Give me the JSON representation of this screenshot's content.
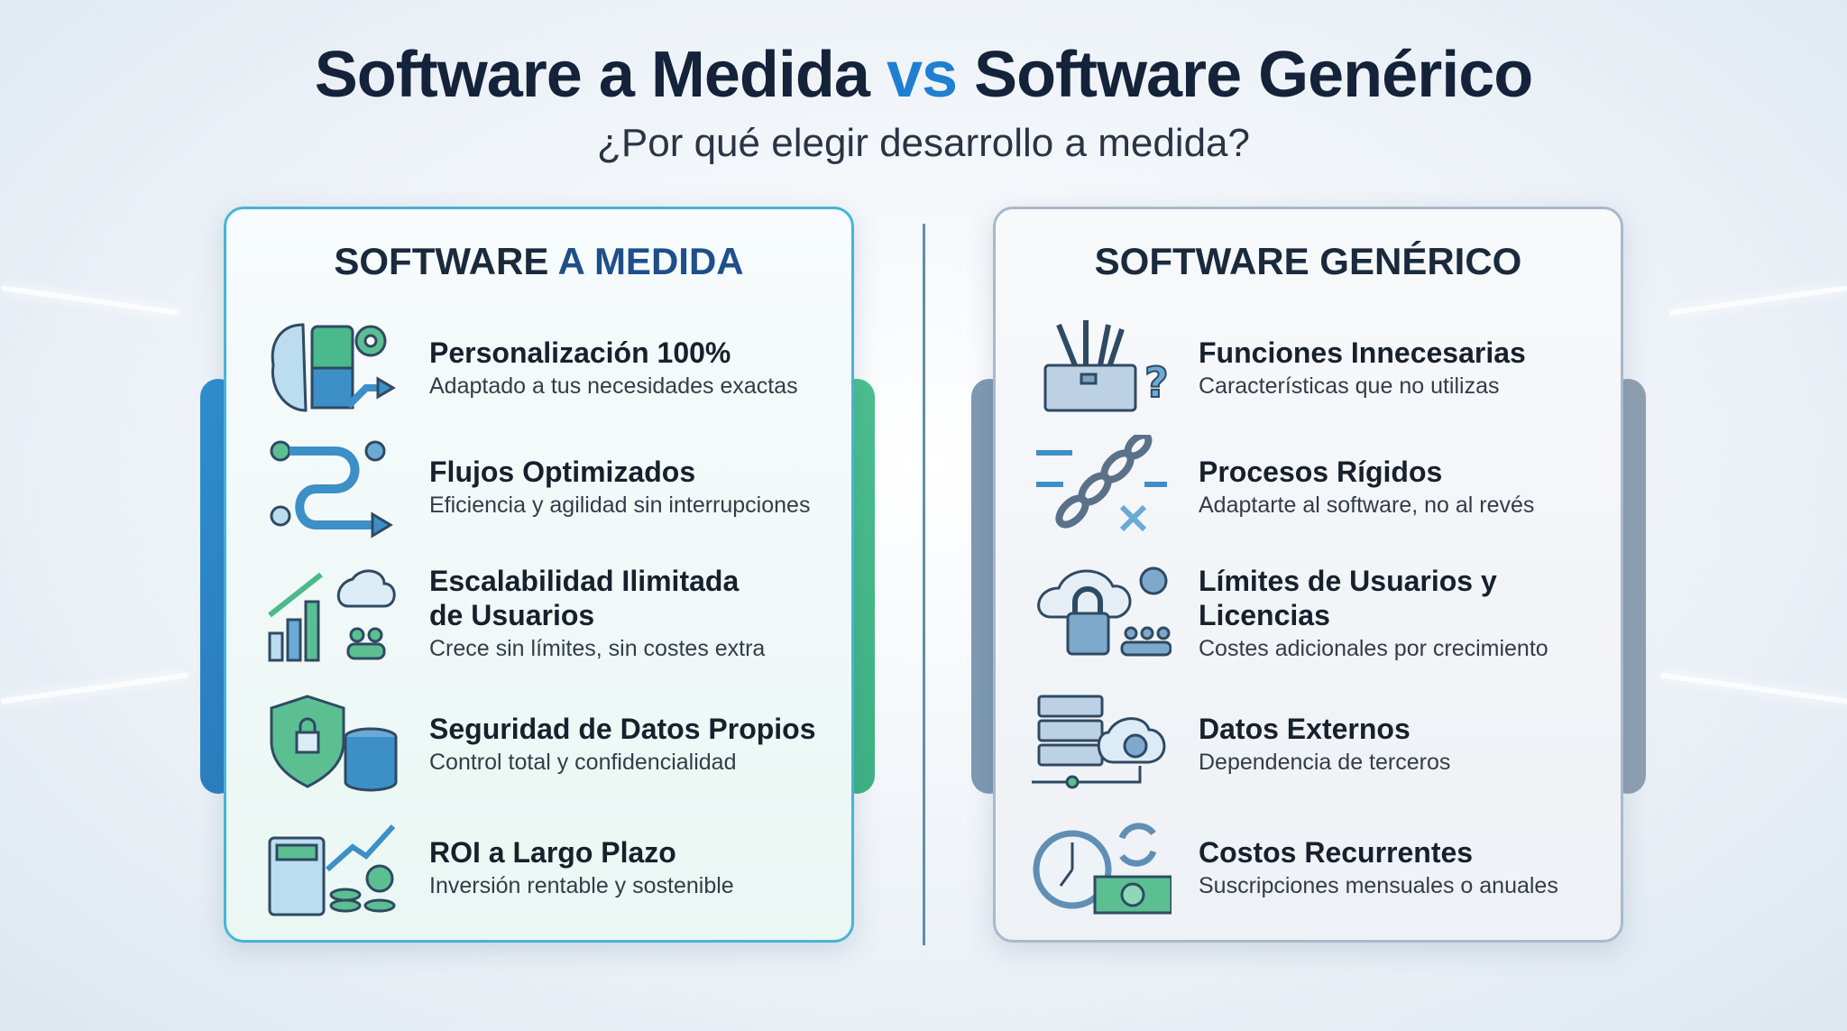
{
  "header": {
    "title_part1": "Software a Medida",
    "title_vs": "vs",
    "title_part2": "Software Genérico",
    "subtitle": "¿Por qué elegir desarrollo a medida?"
  },
  "colors": {
    "accent_blue": "#1f7fd0",
    "accent_green": "#4cc08f",
    "grey": "#9aabbc"
  },
  "left": {
    "heading_part1": "SOFTWARE",
    "heading_part2": "A MEDIDA",
    "items": [
      {
        "icon": "brain-puzzle-gear-icon",
        "title": "Personalización 100%",
        "desc": "Adaptado a tus necesidades exactas"
      },
      {
        "icon": "flow-arrows-icon",
        "title": "Flujos Optimizados",
        "desc": "Eficiencia y agilidad sin interrupciones"
      },
      {
        "icon": "growth-chart-cloud-users-icon",
        "title": "Escalabilidad Ilimitada de Usuarios",
        "desc": "Crece sin límites, sin costes extra"
      },
      {
        "icon": "shield-lock-database-icon",
        "title": "Seguridad de Datos Propios",
        "desc": "Control total y confidencialidad"
      },
      {
        "icon": "calculator-coins-icon",
        "title": "ROI a Largo Plazo",
        "desc": "Inversión rentable y sostenible"
      }
    ]
  },
  "right": {
    "heading": "SOFTWARE GENÉRICO",
    "items": [
      {
        "icon": "toolbox-question-icon",
        "title": "Funciones Innecesarias",
        "desc": "Características que no utilizas"
      },
      {
        "icon": "broken-chain-icon",
        "title": "Procesos Rígidos",
        "desc": "Adaptarte al software, no al revés"
      },
      {
        "icon": "cloud-lock-users-icon",
        "title": "Límites de Usuarios y Licencias",
        "desc": "Costes adicionales por crecimiento"
      },
      {
        "icon": "server-cloud-icon",
        "title": "Datos Externos",
        "desc": "Dependencia de terceros"
      },
      {
        "icon": "clock-money-icon",
        "title": "Costos Recurrentes",
        "desc": "Suscripciones mensuales o anuales"
      }
    ]
  }
}
